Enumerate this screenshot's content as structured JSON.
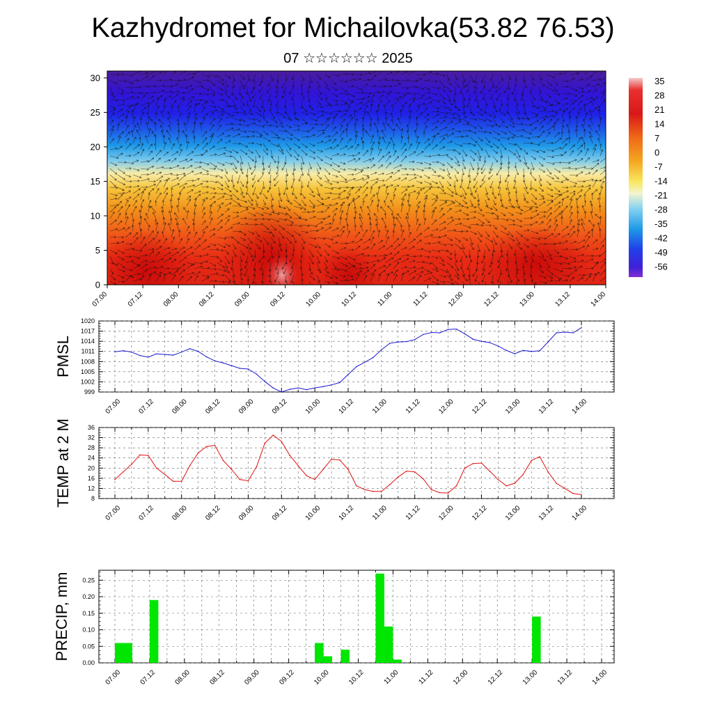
{
  "title": "Kazhydromet for Michailovka(53.82 76.53)",
  "subtitle": "07 ☆☆☆☆☆☆ 2025",
  "time_labels": [
    "07.00",
    "07.12",
    "08.00",
    "08.12",
    "09.00",
    "09.12",
    "10.00",
    "10.12",
    "11.00",
    "11.12",
    "12.00",
    "12.12",
    "13.00",
    "13.12",
    "14.00"
  ],
  "colorbar_labels": [
    "35",
    "28",
    "21",
    "14",
    "7",
    "0",
    "-7",
    "-14",
    "-21",
    "-28",
    "-35",
    "-42",
    "-49",
    "-56"
  ],
  "colors": {
    "pmsl_line": "#1a1ad0",
    "temp_line": "#e01010",
    "precip_bar": "#00e600"
  },
  "chart_data": [
    {
      "type": "heatmap",
      "title": "Kazhydromet for Michailovka(53.82 76.53)",
      "y_ticks": [
        0,
        5,
        10,
        15,
        20,
        25,
        30
      ],
      "ylim": [
        0,
        31
      ],
      "x_range": [
        "07.00",
        "14.00"
      ],
      "colorbar": {
        "min": -56,
        "max": 35,
        "labels": [
          35,
          28,
          21,
          14,
          7,
          0,
          -7,
          -14,
          -21,
          -28,
          -35,
          -42,
          -49,
          -56
        ]
      },
      "overlay": "wind vectors"
    },
    {
      "type": "line",
      "ylabel": "PMSL",
      "ylim": [
        999,
        1020
      ],
      "y_ticks": [
        999,
        1002,
        1005,
        1008,
        1011,
        1014,
        1017,
        1020
      ],
      "x": [
        0,
        3,
        6,
        9,
        12,
        15,
        18,
        21,
        24,
        27,
        30,
        33,
        36,
        39,
        42,
        45,
        48,
        51,
        54,
        57,
        60,
        63,
        66,
        69,
        72,
        75,
        78,
        81,
        84,
        87,
        90,
        93,
        96,
        99,
        102,
        105,
        108,
        111,
        114,
        117,
        120,
        123,
        126,
        129,
        132,
        135,
        138,
        141,
        144,
        147,
        150,
        153,
        156,
        159,
        162,
        165,
        168
      ],
      "values": [
        1010.9,
        1011.2,
        1010.8,
        1009.8,
        1009.3,
        1010.3,
        1010.1,
        1009.9,
        1010.8,
        1011.8,
        1011.0,
        1009.4,
        1008.2,
        1007.6,
        1006.8,
        1006.0,
        1005.8,
        1004.3,
        1002.1,
        1000.2,
        999.0,
        999.8,
        1000.2,
        999.7,
        1000.2,
        1000.6,
        1001.1,
        1001.8,
        1004.2,
        1006.5,
        1007.8,
        1009.2,
        1011.5,
        1013.4,
        1013.8,
        1013.9,
        1014.5,
        1016.0,
        1016.6,
        1016.5,
        1017.5,
        1017.6,
        1016.2,
        1014.6,
        1014.0,
        1013.6,
        1012.6,
        1011.3,
        1010.3,
        1011.3,
        1011.0,
        1011.2,
        1013.8,
        1016.5,
        1016.7,
        1016.5,
        1018.0
      ]
    },
    {
      "type": "line",
      "ylabel": "TEMP at 2 M",
      "ylim": [
        8,
        36
      ],
      "y_ticks": [
        8,
        12,
        16,
        20,
        24,
        28,
        32,
        36
      ],
      "x": [
        0,
        3,
        6,
        9,
        12,
        15,
        18,
        21,
        24,
        27,
        30,
        33,
        36,
        39,
        42,
        45,
        48,
        51,
        54,
        57,
        60,
        63,
        66,
        69,
        72,
        75,
        78,
        81,
        84,
        87,
        90,
        93,
        96,
        99,
        102,
        105,
        108,
        111,
        114,
        117,
        120,
        123,
        126,
        129,
        132,
        135,
        138,
        141,
        144,
        147,
        150,
        153,
        156,
        159,
        162,
        165,
        168
      ],
      "values": [
        15.5,
        18.5,
        21.5,
        25.2,
        25.0,
        20.0,
        17.5,
        14.8,
        14.8,
        21.0,
        26.0,
        28.5,
        29.0,
        23.0,
        19.5,
        15.5,
        15.0,
        20.5,
        29.8,
        33.0,
        30.5,
        25.0,
        21.0,
        17.0,
        15.5,
        19.5,
        23.5,
        23.2,
        19.5,
        13.0,
        11.5,
        10.8,
        10.8,
        13.5,
        16.5,
        18.8,
        18.5,
        15.8,
        11.5,
        10.3,
        10.2,
        13.0,
        20.0,
        21.8,
        22.0,
        18.8,
        15.5,
        13.0,
        14.0,
        17.5,
        23.0,
        24.5,
        18.5,
        14.0,
        12.0,
        10.0,
        9.5
      ]
    },
    {
      "type": "bar",
      "ylabel": "PRECIP, mm",
      "ylim": [
        0,
        0.28
      ],
      "y_ticks": [
        0.0,
        0.05,
        0.1,
        0.15,
        0.2,
        0.25
      ],
      "bar_width_hours": 3,
      "x": [
        0,
        3,
        12,
        69,
        72,
        78,
        90,
        93,
        96,
        144
      ],
      "values": [
        0.06,
        0.06,
        0.19,
        0.06,
        0.02,
        0.04,
        0.27,
        0.11,
        0.01,
        0.14
      ]
    }
  ]
}
